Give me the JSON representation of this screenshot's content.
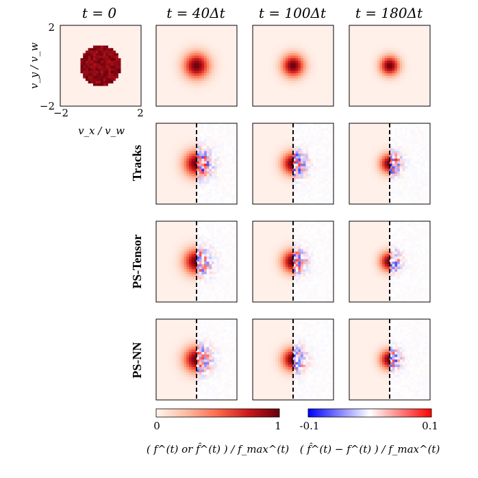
{
  "figure": {
    "col_titles": [
      "t = 0",
      "t = 40Δt",
      "t = 100Δt",
      "t = 180Δt"
    ],
    "row_labels": [
      "Tracks",
      "PS-Tensor",
      "PS-NN"
    ],
    "xaxis_label": "v_x / v_w",
    "yaxis_label": "v_y / v_w",
    "axis_ticks": [
      "−2",
      "2"
    ],
    "cbar_left": {
      "min": "0",
      "max": "1",
      "label": "( f^(t) or f̂^(t) ) / f_max^(t)"
    },
    "cbar_right": {
      "min": "-0.1",
      "max": "0.1",
      "label": "( f̂^(t) − f^(t) ) / f_max^(t)"
    }
  },
  "chart_data": {
    "type": "heatmap",
    "title": "",
    "xlabel": "v_x / v_w",
    "ylabel": "v_y / v_w",
    "xlim": [
      -2,
      2
    ],
    "ylim": [
      -2,
      2
    ],
    "time_steps": [
      0,
      40,
      100,
      180
    ],
    "distribution_radius_vw": [
      1.0,
      0.85,
      0.75,
      0.65
    ],
    "colormaps": {
      "distribution": {
        "range": [
          0,
          1
        ],
        "low_color": "#fff5f0",
        "high_color": "#67000d"
      },
      "difference": {
        "range": [
          -0.1,
          0.1
        ],
        "low_color": "#0000ff",
        "mid_color": "#ffffff",
        "high_color": "#ff0000"
      }
    },
    "panels": {
      "top_row": "f^(t) reference distribution",
      "model_rows": "left half: model prediction f̂^(t); right half: difference f̂^(t) − f^(t)"
    }
  }
}
